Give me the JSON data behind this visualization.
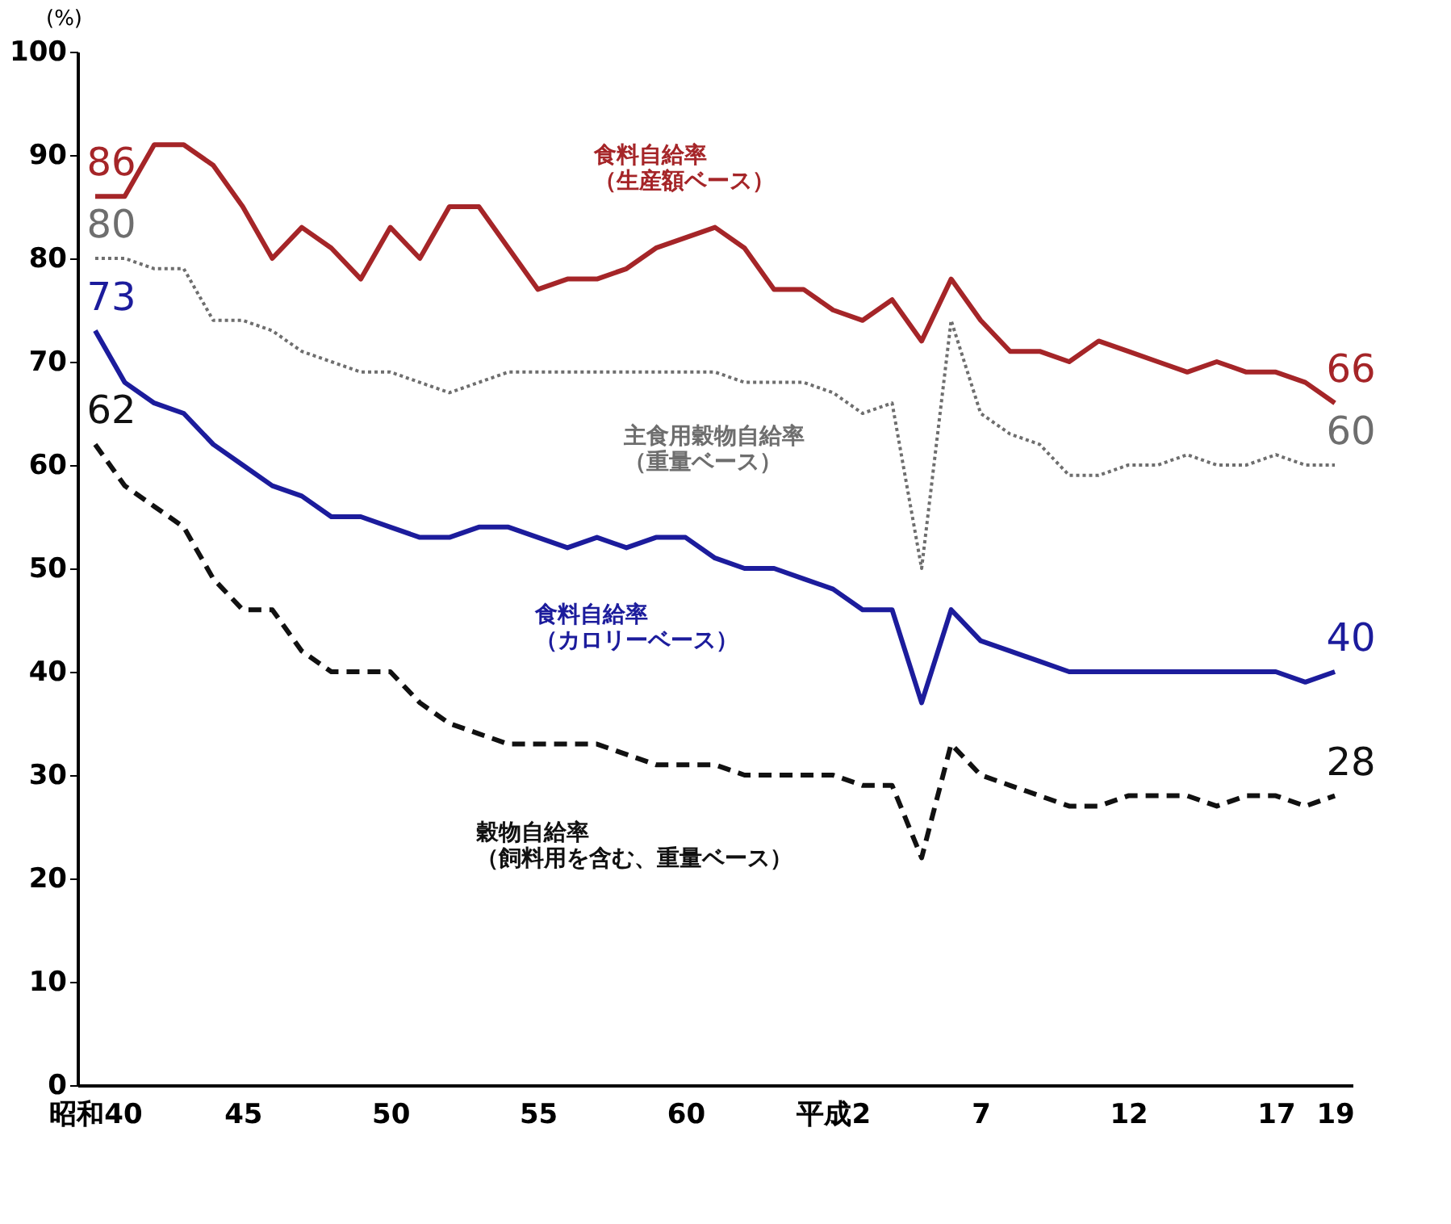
{
  "chart_data": {
    "type": "line",
    "ylabel": "(%)",
    "categories": [
      "昭和40",
      null,
      null,
      null,
      null,
      "45",
      null,
      null,
      null,
      null,
      "50",
      null,
      null,
      null,
      null,
      "55",
      null,
      null,
      null,
      null,
      "60",
      null,
      null,
      null,
      null,
      "平成2",
      null,
      null,
      null,
      null,
      "7",
      null,
      null,
      null,
      null,
      "12",
      null,
      null,
      null,
      null,
      "17",
      null,
      "19"
    ],
    "ylim": [
      0,
      100
    ],
    "yticks": [
      0,
      10,
      20,
      30,
      40,
      50,
      60,
      70,
      80,
      90,
      100
    ],
    "grid": false,
    "marker": "none",
    "series": [
      {
        "name": "食料自給率（生産額ベース）",
        "color": "#a52528",
        "line_style": "solid",
        "values": [
          86,
          86,
          91,
          91,
          89,
          85,
          80,
          83,
          81,
          78,
          83,
          80,
          85,
          85,
          81,
          77,
          78,
          78,
          79,
          81,
          82,
          83,
          81,
          77,
          77,
          75,
          74,
          76,
          72,
          78,
          74,
          71,
          71,
          70,
          72,
          71,
          70,
          69,
          70,
          69,
          69,
          68,
          66
        ],
        "value_labels": [
          "86",
          null,
          null,
          null,
          null,
          null,
          null,
          null,
          null,
          null,
          null,
          null,
          null,
          null,
          null,
          null,
          null,
          null,
          null,
          null,
          null,
          null,
          null,
          null,
          null,
          null,
          null,
          null,
          null,
          null,
          null,
          null,
          null,
          null,
          null,
          null,
          null,
          null,
          null,
          null,
          null,
          null,
          "66"
        ]
      },
      {
        "name": "主食用穀物自給率（重量ベース）",
        "color": "#6e6e6e",
        "line_style": "dotted",
        "values": [
          80,
          80,
          79,
          79,
          74,
          74,
          73,
          71,
          70,
          69,
          69,
          68,
          67,
          68,
          69,
          69,
          69,
          69,
          69,
          69,
          69,
          69,
          68,
          68,
          68,
          67,
          65,
          66,
          50,
          74,
          65,
          63,
          62,
          59,
          59,
          60,
          60,
          61,
          60,
          60,
          61,
          60,
          60
        ],
        "value_labels": [
          "80",
          null,
          null,
          null,
          null,
          null,
          null,
          null,
          null,
          null,
          null,
          null,
          null,
          null,
          null,
          null,
          null,
          null,
          null,
          null,
          null,
          null,
          null,
          null,
          null,
          null,
          null,
          null,
          null,
          null,
          null,
          null,
          null,
          null,
          null,
          null,
          null,
          null,
          null,
          null,
          null,
          null,
          "60"
        ]
      },
      {
        "name": "食料自給率（カロリーベース）",
        "color": "#1c1c9c",
        "line_style": "solid",
        "values": [
          73,
          68,
          66,
          65,
          62,
          60,
          58,
          57,
          55,
          55,
          54,
          53,
          53,
          54,
          54,
          53,
          52,
          53,
          52,
          53,
          53,
          51,
          50,
          50,
          49,
          48,
          46,
          46,
          37,
          46,
          43,
          42,
          41,
          40,
          40,
          40,
          40,
          40,
          40,
          40,
          40,
          39,
          40
        ],
        "value_labels": [
          "73",
          null,
          null,
          null,
          null,
          null,
          null,
          null,
          null,
          null,
          null,
          null,
          null,
          null,
          null,
          null,
          null,
          null,
          null,
          null,
          null,
          null,
          null,
          null,
          null,
          null,
          null,
          null,
          null,
          null,
          null,
          null,
          null,
          null,
          null,
          null,
          null,
          null,
          null,
          null,
          null,
          null,
          "40"
        ]
      },
      {
        "name": "穀物自給率（飼料用を含む、重量ベース）",
        "color": "#111111",
        "line_style": "dashed",
        "values": [
          62,
          58,
          56,
          54,
          49,
          46,
          46,
          42,
          40,
          40,
          40,
          37,
          35,
          34,
          33,
          33,
          33,
          33,
          32,
          31,
          31,
          31,
          30,
          30,
          30,
          30,
          29,
          29,
          22,
          33,
          30,
          29,
          28,
          27,
          27,
          28,
          28,
          28,
          27,
          28,
          28,
          27,
          28
        ],
        "value_labels": [
          "62",
          null,
          null,
          null,
          null,
          null,
          null,
          null,
          null,
          null,
          null,
          null,
          null,
          null,
          null,
          null,
          null,
          null,
          null,
          null,
          null,
          null,
          null,
          null,
          null,
          null,
          null,
          null,
          null,
          null,
          null,
          null,
          null,
          null,
          null,
          null,
          null,
          null,
          null,
          null,
          null,
          null,
          "28"
        ]
      }
    ]
  }
}
